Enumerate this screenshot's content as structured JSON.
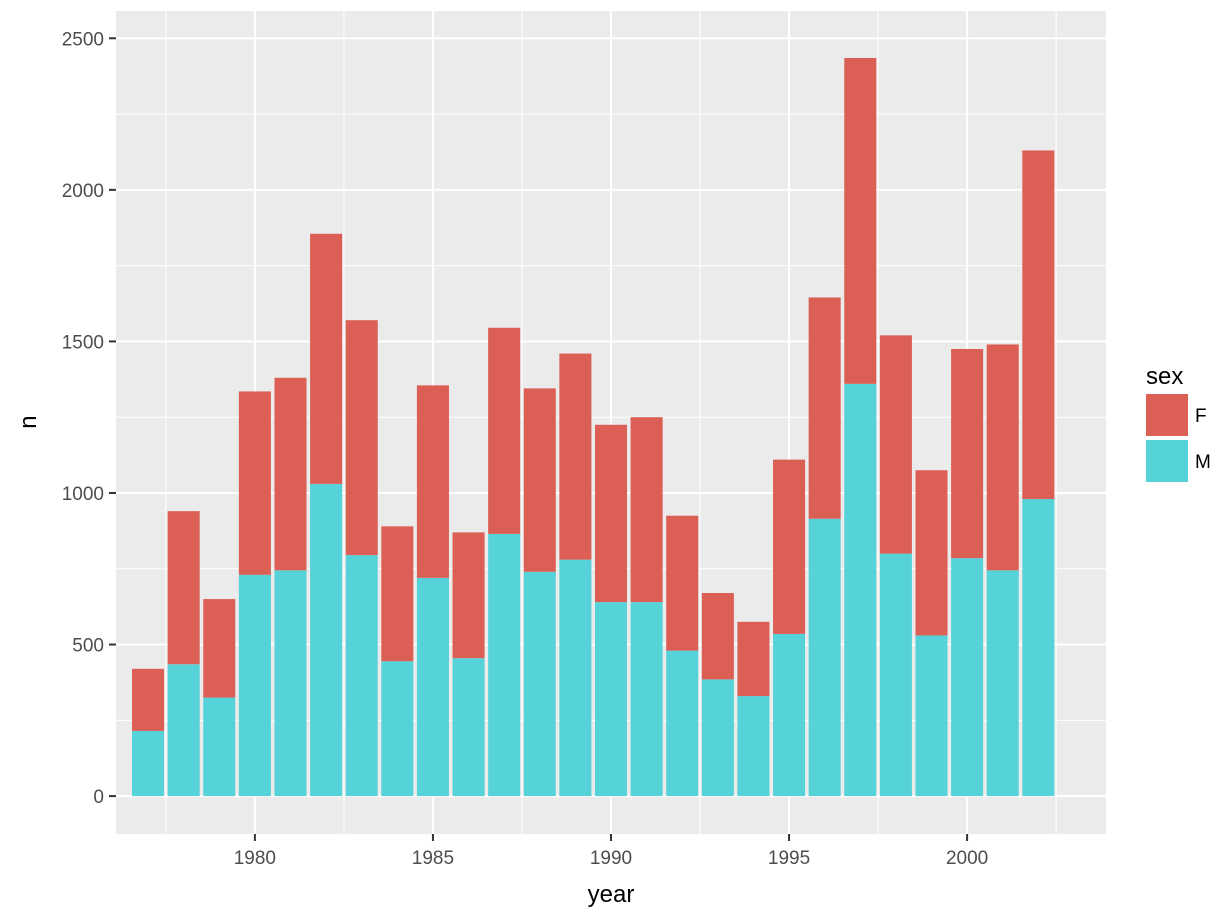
{
  "chart_data": {
    "type": "bar",
    "stacked": true,
    "title": "",
    "xlabel": "year",
    "ylabel": "n",
    "x": [
      1977,
      1978,
      1979,
      1980,
      1981,
      1982,
      1983,
      1984,
      1985,
      1986,
      1987,
      1988,
      1989,
      1990,
      1991,
      1992,
      1993,
      1994,
      1995,
      1996,
      1997,
      1998,
      1999,
      2000,
      2001,
      2002
    ],
    "x_ticks": [
      "1980",
      "1985",
      "1990",
      "1995",
      "2000"
    ],
    "x_tick_values": [
      1980,
      1985,
      1990,
      1995,
      2000
    ],
    "y_ticks": [
      "0",
      "500",
      "1000",
      "1500",
      "2000",
      "2500"
    ],
    "y_tick_values": [
      0,
      500,
      1000,
      1500,
      2000,
      2500
    ],
    "xlim": [
      1976.1,
      2003.9
    ],
    "ylim": [
      -125,
      2590
    ],
    "grid": true,
    "legend": {
      "title": "sex",
      "placement": "right",
      "entries": [
        "F",
        "M"
      ]
    },
    "series": [
      {
        "name": "F",
        "color": "#dc5f56",
        "values": [
          205,
          505,
          325,
          605,
          635,
          825,
          775,
          445,
          635,
          415,
          680,
          605,
          680,
          585,
          610,
          445,
          285,
          245,
          575,
          730,
          1075,
          720,
          545,
          690,
          745,
          1150
        ]
      },
      {
        "name": "M",
        "color": "#56d2d9",
        "values": [
          215,
          435,
          325,
          730,
          745,
          1030,
          795,
          445,
          720,
          455,
          865,
          740,
          780,
          640,
          640,
          480,
          385,
          330,
          535,
          915,
          1360,
          800,
          530,
          785,
          745,
          980
        ]
      }
    ]
  }
}
